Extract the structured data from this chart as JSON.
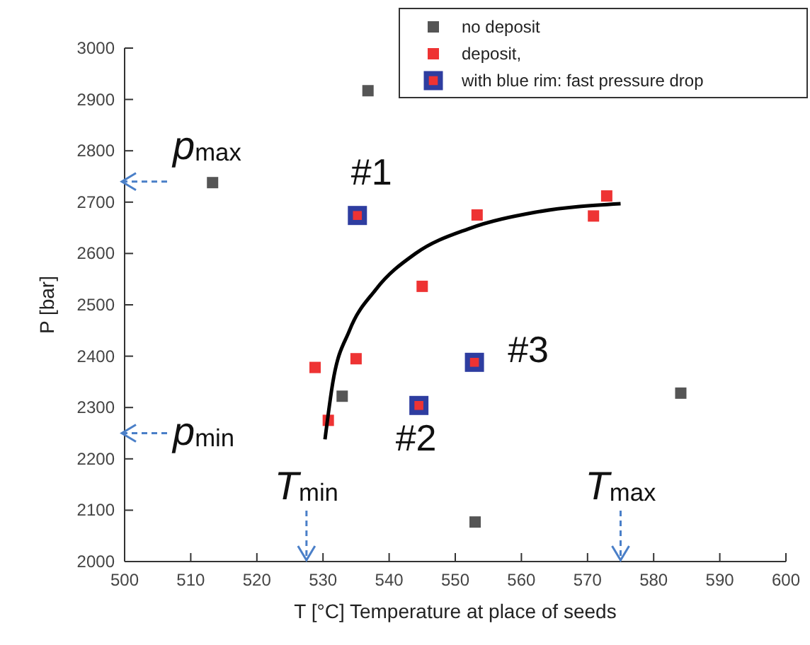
{
  "chart_data": {
    "type": "scatter",
    "xlabel": "T [°C] Temperature at place of seeds",
    "ylabel": "P [bar]",
    "xlim": [
      500,
      600
    ],
    "xticks": [
      500,
      510,
      520,
      530,
      540,
      550,
      560,
      570,
      580,
      590,
      600
    ],
    "ylim": [
      2000,
      3000
    ],
    "yticks": [
      2000,
      2100,
      2200,
      2300,
      2400,
      2500,
      2600,
      2700,
      2800,
      2900,
      3000
    ],
    "marker": "square",
    "grid": false,
    "legend": "top right",
    "series": [
      {
        "name": "no deposit",
        "color": "#555555",
        "x": [
          513.3,
          536.8,
          532.9,
          553.0,
          584.1
        ],
        "values": [
          2738,
          2917,
          2322,
          2077,
          2328
        ]
      },
      {
        "name": "deposit,",
        "color": "#ee3333",
        "x": [
          528.8,
          535.0,
          530.8,
          545.0,
          553.3,
          570.9,
          572.9
        ],
        "values": [
          2378,
          2395,
          2275,
          2536,
          2675,
          2673,
          2712
        ]
      },
      {
        "name": "with blue rim: fast pressure drop",
        "color": "#2e3da0",
        "x": [
          535.2,
          544.5,
          552.9
        ],
        "values": [
          2674,
          2304,
          2388
        ]
      },
      {
        "type": "line",
        "color": "#000000",
        "marker": "none",
        "x": [
          530.3,
          531.5,
          534,
          538,
          544,
          552,
          562,
          575
        ],
        "values": [
          2238,
          2350,
          2450,
          2530,
          2600,
          2648,
          2680,
          2697
        ]
      }
    ],
    "annotations": [
      {
        "text": "#1",
        "x": 535.2,
        "y": 2674
      },
      {
        "text": "#2",
        "x": 544.5,
        "y": 2304
      },
      {
        "text": "#3",
        "x": 552.9,
        "y": 2388
      }
    ],
    "ref_lines": [
      {
        "axis": "y",
        "value": 2740,
        "label": "p$_{max}$"
      },
      {
        "axis": "y",
        "value": 2250,
        "label": "p$_{min}$"
      },
      {
        "axis": "x",
        "value": 527.5,
        "label": "T$_{min}$"
      },
      {
        "axis": "x",
        "value": 575,
        "label": "T$_{max}$"
      }
    ]
  }
}
